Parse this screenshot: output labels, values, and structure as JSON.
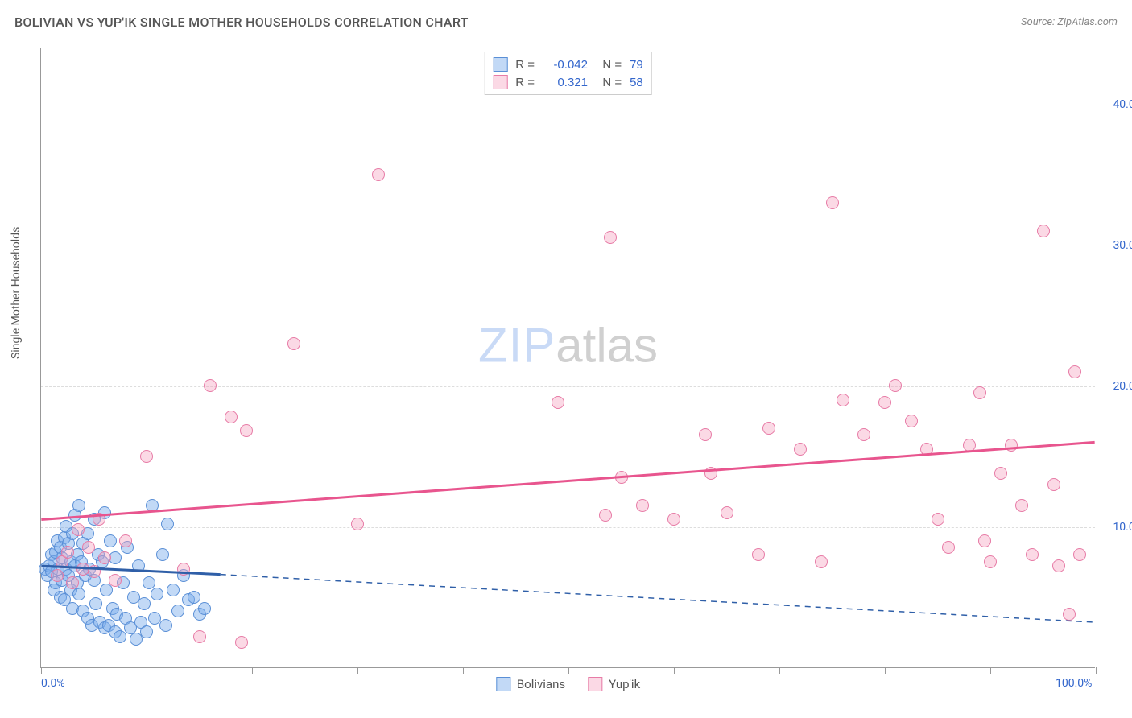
{
  "title": "BOLIVIAN VS YUP'IK SINGLE MOTHER HOUSEHOLDS CORRELATION CHART",
  "source": "Source: ZipAtlas.com",
  "y_axis_title": "Single Mother Households",
  "watermark_a": "ZIP",
  "watermark_b": "atlas",
  "chart": {
    "type": "scatter",
    "xlim": [
      0,
      100
    ],
    "ylim": [
      0,
      44
    ],
    "x_ticks": [
      0,
      10,
      20,
      30,
      40,
      50,
      60,
      70,
      80,
      90,
      100
    ],
    "y_grid": [
      10,
      20,
      30,
      40
    ],
    "x_labels": [
      {
        "v": 0,
        "t": "0.0%"
      },
      {
        "v": 100,
        "t": "100.0%"
      }
    ],
    "y_labels": [
      {
        "v": 10,
        "t": "10.0%"
      },
      {
        "v": 20,
        "t": "20.0%"
      },
      {
        "v": 30,
        "t": "30.0%"
      },
      {
        "v": 40,
        "t": "40.0%"
      }
    ],
    "background_color": "#ffffff",
    "grid_color": "#dddddd",
    "marker_radius": 8,
    "marker_border": 1.5
  },
  "series": [
    {
      "name": "Bolivians",
      "fill": "rgba(120,170,235,0.45)",
      "stroke": "#5a8fd6",
      "line_color": "#2f5fa8",
      "R": "-0.042",
      "N": "79",
      "trend": {
        "x1": 0,
        "y1": 7.2,
        "x2": 17,
        "y2": 6.6,
        "dash_x2": 100,
        "dash_y2": 3.2
      },
      "points": [
        [
          0.4,
          7.0
        ],
        [
          0.6,
          6.5
        ],
        [
          0.8,
          7.2
        ],
        [
          1.0,
          8.0
        ],
        [
          1.0,
          6.8
        ],
        [
          1.2,
          7.5
        ],
        [
          1.2,
          5.5
        ],
        [
          1.4,
          8.2
        ],
        [
          1.4,
          6.0
        ],
        [
          1.5,
          9.0
        ],
        [
          1.6,
          7.0
        ],
        [
          1.8,
          8.5
        ],
        [
          1.8,
          5.0
        ],
        [
          2.0,
          7.8
        ],
        [
          2.0,
          6.2
        ],
        [
          2.2,
          9.2
        ],
        [
          2.2,
          4.8
        ],
        [
          2.4,
          7.0
        ],
        [
          2.4,
          10.0
        ],
        [
          2.6,
          6.5
        ],
        [
          2.6,
          8.8
        ],
        [
          2.8,
          5.5
        ],
        [
          2.8,
          7.5
        ],
        [
          3.0,
          9.5
        ],
        [
          3.0,
          4.2
        ],
        [
          3.2,
          7.2
        ],
        [
          3.2,
          10.8
        ],
        [
          3.4,
          6.0
        ],
        [
          3.4,
          8.0
        ],
        [
          3.6,
          5.2
        ],
        [
          3.6,
          11.5
        ],
        [
          3.8,
          7.5
        ],
        [
          4.0,
          4.0
        ],
        [
          4.0,
          8.8
        ],
        [
          4.2,
          6.5
        ],
        [
          4.4,
          3.5
        ],
        [
          4.4,
          9.5
        ],
        [
          4.6,
          7.0
        ],
        [
          4.8,
          3.0
        ],
        [
          5.0,
          10.5
        ],
        [
          5.0,
          6.2
        ],
        [
          5.2,
          4.5
        ],
        [
          5.4,
          8.0
        ],
        [
          5.6,
          3.2
        ],
        [
          5.8,
          7.5
        ],
        [
          6.0,
          2.8
        ],
        [
          6.0,
          11.0
        ],
        [
          6.2,
          5.5
        ],
        [
          6.4,
          3.0
        ],
        [
          6.6,
          9.0
        ],
        [
          6.8,
          4.2
        ],
        [
          7.0,
          2.5
        ],
        [
          7.0,
          7.8
        ],
        [
          7.2,
          3.8
        ],
        [
          7.5,
          2.2
        ],
        [
          7.8,
          6.0
        ],
        [
          8.0,
          3.5
        ],
        [
          8.2,
          8.5
        ],
        [
          8.5,
          2.8
        ],
        [
          8.8,
          5.0
        ],
        [
          9.0,
          2.0
        ],
        [
          9.2,
          7.2
        ],
        [
          9.5,
          3.2
        ],
        [
          9.8,
          4.5
        ],
        [
          10.0,
          2.5
        ],
        [
          10.2,
          6.0
        ],
        [
          10.5,
          11.5
        ],
        [
          10.8,
          3.5
        ],
        [
          11.0,
          5.2
        ],
        [
          11.5,
          8.0
        ],
        [
          11.8,
          3.0
        ],
        [
          12.0,
          10.2
        ],
        [
          12.5,
          5.5
        ],
        [
          13.0,
          4.0
        ],
        [
          13.5,
          6.5
        ],
        [
          14.0,
          4.8
        ],
        [
          14.5,
          5.0
        ],
        [
          15.0,
          3.8
        ],
        [
          15.5,
          4.2
        ]
      ]
    },
    {
      "name": "Yup'ik",
      "fill": "rgba(245,160,190,0.40)",
      "stroke": "#e77ba6",
      "line_color": "#e8558e",
      "R": "0.321",
      "N": "58",
      "trend": {
        "x1": 0,
        "y1": 10.5,
        "x2": 100,
        "y2": 16.0
      },
      "points": [
        [
          1.5,
          6.5
        ],
        [
          2.0,
          7.5
        ],
        [
          2.5,
          8.2
        ],
        [
          3.0,
          6.0
        ],
        [
          3.5,
          9.8
        ],
        [
          4.0,
          7.0
        ],
        [
          4.5,
          8.5
        ],
        [
          5.0,
          6.8
        ],
        [
          5.5,
          10.5
        ],
        [
          6.0,
          7.8
        ],
        [
          7.0,
          6.2
        ],
        [
          8.0,
          9.0
        ],
        [
          10.0,
          15.0
        ],
        [
          13.5,
          7.0
        ],
        [
          15.0,
          2.2
        ],
        [
          16.0,
          20.0
        ],
        [
          18.0,
          17.8
        ],
        [
          19.0,
          1.8
        ],
        [
          19.5,
          16.8
        ],
        [
          24.0,
          23.0
        ],
        [
          30.0,
          10.2
        ],
        [
          32.0,
          35.0
        ],
        [
          49.0,
          18.8
        ],
        [
          53.5,
          10.8
        ],
        [
          54.0,
          30.5
        ],
        [
          55.0,
          13.5
        ],
        [
          57.0,
          11.5
        ],
        [
          60.0,
          10.5
        ],
        [
          63.0,
          16.5
        ],
        [
          63.5,
          13.8
        ],
        [
          65.0,
          11.0
        ],
        [
          68.0,
          8.0
        ],
        [
          69.0,
          17.0
        ],
        [
          72.0,
          15.5
        ],
        [
          74.0,
          7.5
        ],
        [
          75.0,
          33.0
        ],
        [
          76.0,
          19.0
        ],
        [
          78.0,
          16.5
        ],
        [
          80.0,
          18.8
        ],
        [
          81.0,
          20.0
        ],
        [
          82.5,
          17.5
        ],
        [
          84.0,
          15.5
        ],
        [
          85.0,
          10.5
        ],
        [
          86.0,
          8.5
        ],
        [
          88.0,
          15.8
        ],
        [
          89.0,
          19.5
        ],
        [
          89.5,
          9.0
        ],
        [
          90.0,
          7.5
        ],
        [
          91.0,
          13.8
        ],
        [
          92.0,
          15.8
        ],
        [
          93.0,
          11.5
        ],
        [
          94.0,
          8.0
        ],
        [
          95.0,
          31.0
        ],
        [
          96.0,
          13.0
        ],
        [
          96.5,
          7.2
        ],
        [
          97.5,
          3.8
        ],
        [
          98.0,
          21.0
        ],
        [
          98.5,
          8.0
        ]
      ]
    }
  ],
  "legend_bottom": [
    {
      "label": "Bolivians",
      "fill": "rgba(120,170,235,0.45)",
      "stroke": "#5a8fd6"
    },
    {
      "label": "Yup'ik",
      "fill": "rgba(245,160,190,0.40)",
      "stroke": "#e77ba6"
    }
  ]
}
